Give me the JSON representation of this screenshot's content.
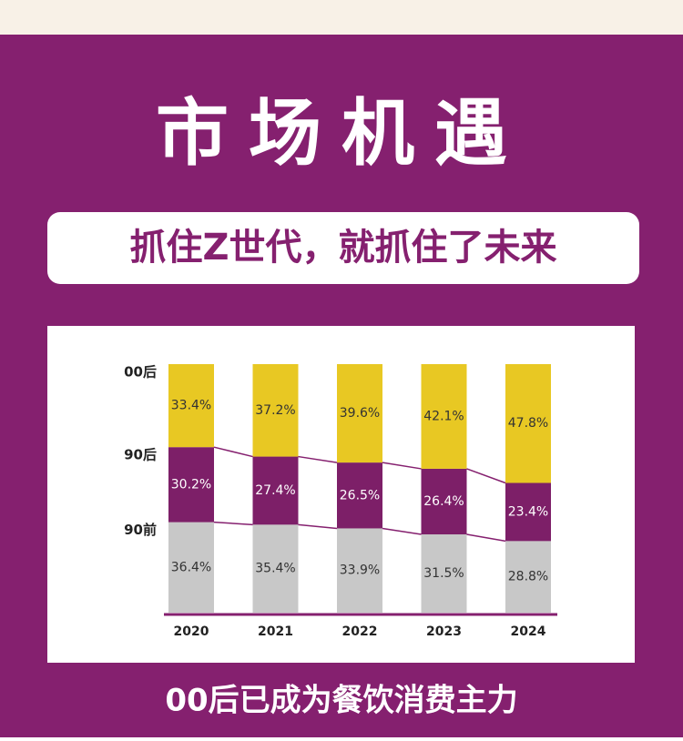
{
  "chart_data": {
    "type": "stacked_bar",
    "title": "市场机遇",
    "subtitle": "抓住Z世代，就抓住了未来",
    "caption": "00后已成为餐饮消费主力",
    "categories": [
      "2020",
      "2021",
      "2022",
      "2023",
      "2024"
    ],
    "series": [
      {
        "name": "90前",
        "color": "#c8c8c8",
        "values": [
          36.4,
          35.4,
          33.9,
          31.5,
          28.8
        ],
        "value_labels": [
          "36.4%",
          "35.4%",
          "33.9%",
          "31.5%",
          "28.8%"
        ]
      },
      {
        "name": "90后",
        "color": "#7d1f68",
        "values": [
          30.2,
          27.4,
          26.5,
          26.4,
          23.4
        ],
        "value_labels": [
          "30.2%",
          "27.4%",
          "26.5%",
          "26.4%",
          "23.4%"
        ]
      },
      {
        "name": "00后",
        "color": "#e8c823",
        "values": [
          33.4,
          37.2,
          39.6,
          42.1,
          47.8
        ],
        "value_labels": [
          "33.4%",
          "37.2%",
          "39.6%",
          "42.1%",
          "47.8%"
        ]
      }
    ],
    "ylim": [
      0,
      100
    ]
  }
}
